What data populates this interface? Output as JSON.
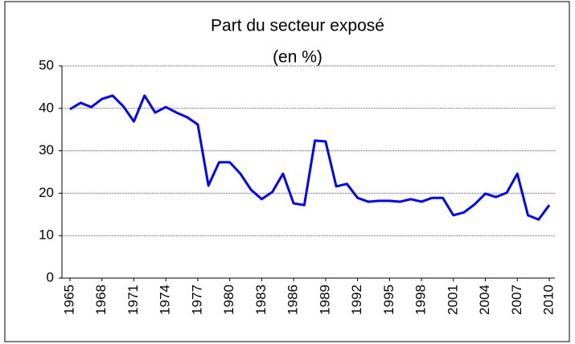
{
  "chart_data": {
    "type": "line",
    "title": "Part du secteur exposé",
    "subtitle": "(en %)",
    "x": [
      1965,
      1966,
      1967,
      1968,
      1969,
      1970,
      1971,
      1972,
      1973,
      1974,
      1975,
      1976,
      1977,
      1978,
      1979,
      1980,
      1981,
      1982,
      1983,
      1984,
      1985,
      1986,
      1987,
      1988,
      1989,
      1990,
      1991,
      1992,
      1993,
      1994,
      1995,
      1996,
      1997,
      1998,
      1999,
      2000,
      2001,
      2002,
      2003,
      2004,
      2005,
      2006,
      2007,
      2008,
      2009,
      2010
    ],
    "series": [
      {
        "name": "Part du secteur exposé",
        "color": "#0000ff",
        "values": [
          39.8,
          41.3,
          40.3,
          42.2,
          43.0,
          40.5,
          36.9,
          43.0,
          39.0,
          40.3,
          39.0,
          37.9,
          36.2,
          21.8,
          27.3,
          27.3,
          24.6,
          20.8,
          18.6,
          20.3,
          24.6,
          17.6,
          17.2,
          32.4,
          32.2,
          21.6,
          22.2,
          18.9,
          18.0,
          18.2,
          18.2,
          18.0,
          18.6,
          18.0,
          18.9,
          18.9,
          14.8,
          15.5,
          17.4,
          19.9,
          19.1,
          20.1,
          24.6,
          14.8,
          13.8,
          17.2
        ]
      }
    ],
    "xlim": [
      1965,
      2010
    ],
    "xticks": [
      1965,
      1968,
      1971,
      1974,
      1977,
      1980,
      1983,
      1986,
      1989,
      1992,
      1995,
      1998,
      2001,
      2004,
      2007,
      2010
    ],
    "ylim": [
      0,
      50
    ],
    "yticks": [
      0,
      10,
      20,
      30,
      40,
      50
    ],
    "grid": true
  }
}
